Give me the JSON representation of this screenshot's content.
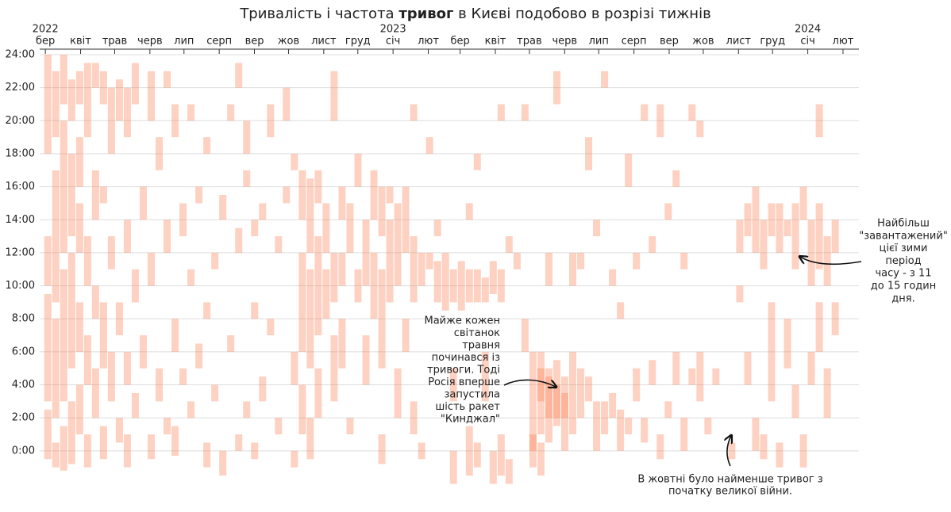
{
  "chart_data": {
    "type": "weekly-timeline",
    "title": [
      "Тривалість і частота ",
      "тривог",
      " в Києві подобово в розрізі тижнів"
    ],
    "color": "#fa7f4f",
    "grid": true,
    "xlim": [
      "2022-02-24",
      "2024-02-15"
    ],
    "xticks": [
      {
        "value": "2022-03-01",
        "label": "бер"
      },
      {
        "value": "2022-04-01",
        "label": "квіт"
      },
      {
        "value": "2022-05-01",
        "label": "трав"
      },
      {
        "value": "2022-06-01",
        "label": "черв"
      },
      {
        "value": "2022-07-01",
        "label": "лип"
      },
      {
        "value": "2022-08-01",
        "label": "серп"
      },
      {
        "value": "2022-09-01",
        "label": "вер"
      },
      {
        "value": "2022-10-01",
        "label": "жов"
      },
      {
        "value": "2022-11-01",
        "label": "лист"
      },
      {
        "value": "2022-12-01",
        "label": "груд"
      },
      {
        "value": "2023-01-01",
        "label": "січ"
      },
      {
        "value": "2023-02-01",
        "label": "лют"
      },
      {
        "value": "2023-03-01",
        "label": "бер"
      },
      {
        "value": "2023-04-01",
        "label": "квіт"
      },
      {
        "value": "2023-05-01",
        "label": "трав"
      },
      {
        "value": "2023-06-01",
        "label": "черв"
      },
      {
        "value": "2023-07-01",
        "label": "лип"
      },
      {
        "value": "2023-08-01",
        "label": "серп"
      },
      {
        "value": "2023-09-01",
        "label": "вер"
      },
      {
        "value": "2023-10-01",
        "label": "жов"
      },
      {
        "value": "2023-11-01",
        "label": "лист"
      },
      {
        "value": "2023-12-01",
        "label": "груд"
      },
      {
        "value": "2024-01-01",
        "label": "січ"
      },
      {
        "value": "2024-02-01",
        "label": "лют"
      }
    ],
    "year_labels": [
      {
        "value": "2022-03-01",
        "label": "2022"
      },
      {
        "value": "2023-01-01",
        "label": "2023"
      },
      {
        "value": "2024-01-01",
        "label": "2024"
      }
    ],
    "ylim": [
      -2.6,
      24
    ],
    "yticks": [
      {
        "value": 0,
        "label": "0:00"
      },
      {
        "value": 2,
        "label": "2:00"
      },
      {
        "value": 4,
        "label": "4:00"
      },
      {
        "value": 6,
        "label": "6:00"
      },
      {
        "value": 8,
        "label": "8:00"
      },
      {
        "value": 10,
        "label": "10:00"
      },
      {
        "value": 12,
        "label": "12:00"
      },
      {
        "value": 14,
        "label": "14:00"
      },
      {
        "value": 16,
        "label": "16:00"
      },
      {
        "value": 18,
        "label": "18:00"
      },
      {
        "value": 20,
        "label": "20:00"
      },
      {
        "value": 22,
        "label": "22:00"
      },
      {
        "value": 24,
        "label": "24:00"
      }
    ],
    "alerts": [
      [
        "2022-02-28",
        -0.5,
        2.5
      ],
      [
        "2022-02-28",
        3,
        9.5
      ],
      [
        "2022-02-28",
        10,
        13
      ],
      [
        "2022-02-28",
        18,
        24
      ],
      [
        "2022-03-07",
        -1,
        0.5
      ],
      [
        "2022-03-07",
        2,
        8
      ],
      [
        "2022-03-07",
        9,
        17
      ],
      [
        "2022-03-07",
        19,
        23
      ],
      [
        "2022-03-14",
        -1.2,
        1.5
      ],
      [
        "2022-03-14",
        3,
        11
      ],
      [
        "2022-03-14",
        12,
        20
      ],
      [
        "2022-03-14",
        21,
        24
      ],
      [
        "2022-03-21",
        -0.8,
        3
      ],
      [
        "2022-03-21",
        5,
        12
      ],
      [
        "2022-03-21",
        13,
        18
      ],
      [
        "2022-03-21",
        20,
        22.5
      ],
      [
        "2022-03-28",
        1,
        4
      ],
      [
        "2022-03-28",
        6,
        9
      ],
      [
        "2022-03-28",
        12,
        15
      ],
      [
        "2022-03-28",
        16,
        19
      ],
      [
        "2022-03-28",
        21,
        23
      ],
      [
        "2022-04-04",
        -1,
        1
      ],
      [
        "2022-04-04",
        4,
        7
      ],
      [
        "2022-04-04",
        10,
        13
      ],
      [
        "2022-04-04",
        19,
        23.5
      ],
      [
        "2022-04-11",
        2,
        5
      ],
      [
        "2022-04-11",
        8,
        10
      ],
      [
        "2022-04-11",
        14,
        17
      ],
      [
        "2022-04-11",
        22,
        23.5
      ],
      [
        "2022-04-18",
        -0.5,
        1.5
      ],
      [
        "2022-04-18",
        5,
        9
      ],
      [
        "2022-04-18",
        15,
        16
      ],
      [
        "2022-04-18",
        21,
        23
      ],
      [
        "2022-04-25",
        3,
        6
      ],
      [
        "2022-04-25",
        11,
        13
      ],
      [
        "2022-04-25",
        18,
        22
      ],
      [
        "2022-05-02",
        0.5,
        2
      ],
      [
        "2022-05-02",
        7,
        9
      ],
      [
        "2022-05-02",
        20,
        22.5
      ],
      [
        "2022-05-09",
        -1,
        1
      ],
      [
        "2022-05-09",
        4,
        6
      ],
      [
        "2022-05-09",
        12,
        14
      ],
      [
        "2022-05-09",
        19,
        22
      ],
      [
        "2022-05-16",
        2,
        3.5
      ],
      [
        "2022-05-16",
        9,
        11
      ],
      [
        "2022-05-16",
        21,
        23.5
      ],
      [
        "2022-05-23",
        5,
        7
      ],
      [
        "2022-05-23",
        14,
        16
      ],
      [
        "2022-05-30",
        -0.5,
        1
      ],
      [
        "2022-05-30",
        10,
        12
      ],
      [
        "2022-05-30",
        20,
        23
      ],
      [
        "2022-06-06",
        3,
        5
      ],
      [
        "2022-06-06",
        17,
        19
      ],
      [
        "2022-06-13",
        1,
        2
      ],
      [
        "2022-06-13",
        12,
        14
      ],
      [
        "2022-06-13",
        22,
        23
      ],
      [
        "2022-06-20",
        -0.3,
        1.5
      ],
      [
        "2022-06-20",
        6,
        8
      ],
      [
        "2022-06-20",
        19,
        21
      ],
      [
        "2022-06-27",
        4,
        5
      ],
      [
        "2022-06-27",
        13,
        15
      ],
      [
        "2022-07-04",
        2,
        3
      ],
      [
        "2022-07-04",
        10,
        11
      ],
      [
        "2022-07-04",
        20,
        21
      ],
      [
        "2022-07-11",
        5,
        6.5
      ],
      [
        "2022-07-11",
        15,
        16
      ],
      [
        "2022-07-18",
        -1,
        0.5
      ],
      [
        "2022-07-18",
        8,
        9
      ],
      [
        "2022-07-18",
        18,
        19
      ],
      [
        "2022-07-25",
        3,
        4
      ],
      [
        "2022-07-25",
        11,
        12
      ],
      [
        "2022-08-01",
        -1.5,
        0
      ],
      [
        "2022-08-01",
        14,
        15.5
      ],
      [
        "2022-08-08",
        6,
        7
      ],
      [
        "2022-08-08",
        20,
        21
      ],
      [
        "2022-08-15",
        0,
        1
      ],
      [
        "2022-08-15",
        12,
        13.5
      ],
      [
        "2022-08-15",
        22,
        23.5
      ],
      [
        "2022-08-22",
        2,
        3
      ],
      [
        "2022-08-22",
        16,
        17
      ],
      [
        "2022-08-22",
        18,
        20
      ],
      [
        "2022-08-29",
        -0.5,
        0.5
      ],
      [
        "2022-08-29",
        8,
        9
      ],
      [
        "2022-08-29",
        13,
        14
      ],
      [
        "2022-09-05",
        3,
        4.5
      ],
      [
        "2022-09-05",
        14,
        15
      ],
      [
        "2022-09-12",
        7,
        8
      ],
      [
        "2022-09-12",
        19,
        21
      ],
      [
        "2022-09-19",
        1,
        2
      ],
      [
        "2022-09-19",
        12,
        13
      ],
      [
        "2022-09-26",
        15,
        16
      ],
      [
        "2022-09-26",
        20,
        22
      ],
      [
        "2022-10-03",
        -1,
        0
      ],
      [
        "2022-10-03",
        4,
        6
      ],
      [
        "2022-10-03",
        17,
        18
      ],
      [
        "2022-10-10",
        1,
        4
      ],
      [
        "2022-10-10",
        6,
        12
      ],
      [
        "2022-10-10",
        14,
        17
      ],
      [
        "2022-10-17",
        -0.5,
        2
      ],
      [
        "2022-10-17",
        5,
        11
      ],
      [
        "2022-10-17",
        12,
        16.5
      ],
      [
        "2022-10-24",
        2,
        5
      ],
      [
        "2022-10-24",
        7,
        13
      ],
      [
        "2022-10-24",
        15,
        17
      ],
      [
        "2022-10-31",
        8,
        11
      ],
      [
        "2022-10-31",
        12,
        15
      ],
      [
        "2022-11-07",
        3,
        7
      ],
      [
        "2022-11-07",
        9,
        12
      ],
      [
        "2022-11-07",
        20,
        23
      ],
      [
        "2022-11-14",
        5,
        8
      ],
      [
        "2022-11-14",
        10,
        12
      ],
      [
        "2022-11-14",
        14,
        16
      ],
      [
        "2022-11-21",
        1,
        2
      ],
      [
        "2022-11-21",
        12,
        15
      ],
      [
        "2022-11-28",
        9,
        11
      ],
      [
        "2022-11-28",
        16,
        18
      ],
      [
        "2022-12-05",
        4,
        7
      ],
      [
        "2022-12-05",
        10,
        14
      ],
      [
        "2022-12-12",
        8,
        12
      ],
      [
        "2022-12-12",
        14,
        17
      ],
      [
        "2022-12-19",
        -0.8,
        1
      ],
      [
        "2022-12-19",
        5,
        11
      ],
      [
        "2022-12-19",
        13,
        16
      ],
      [
        "2022-12-26",
        9,
        14
      ],
      [
        "2022-12-26",
        15,
        16
      ],
      [
        "2023-01-02",
        2,
        5
      ],
      [
        "2023-01-02",
        10,
        15
      ],
      [
        "2023-01-09",
        6,
        8
      ],
      [
        "2023-01-09",
        12,
        16
      ],
      [
        "2023-01-16",
        1,
        3
      ],
      [
        "2023-01-16",
        9,
        13
      ],
      [
        "2023-01-16",
        20,
        21
      ],
      [
        "2023-01-23",
        -0.5,
        0.5
      ],
      [
        "2023-01-23",
        10,
        12
      ],
      [
        "2023-01-30",
        11,
        12
      ],
      [
        "2023-01-30",
        18,
        19
      ],
      [
        "2023-02-06",
        9,
        11.5
      ],
      [
        "2023-02-06",
        13,
        14
      ],
      [
        "2023-02-13",
        8.5,
        12
      ],
      [
        "2023-02-20",
        -2,
        0
      ],
      [
        "2023-02-20",
        9,
        11
      ],
      [
        "2023-02-20",
        3,
        5
      ],
      [
        "2023-02-27",
        8.5,
        11.5
      ],
      [
        "2023-03-06",
        -1.5,
        1.5
      ],
      [
        "2023-03-06",
        9,
        11
      ],
      [
        "2023-03-06",
        14,
        15
      ],
      [
        "2023-03-13",
        9,
        11
      ],
      [
        "2023-03-13",
        -1,
        0.5
      ],
      [
        "2023-03-13",
        17,
        18
      ],
      [
        "2023-03-20",
        9,
        10.5
      ],
      [
        "2023-03-20",
        3,
        6
      ],
      [
        "2023-03-27",
        9.5,
        11.5
      ],
      [
        "2023-03-27",
        -2,
        0
      ],
      [
        "2023-04-03",
        9,
        11
      ],
      [
        "2023-04-03",
        -1.5,
        1
      ],
      [
        "2023-04-03",
        20,
        21
      ],
      [
        "2023-04-10",
        -2,
        -0.5
      ],
      [
        "2023-04-10",
        12,
        13
      ],
      [
        "2023-04-17",
        11,
        12
      ],
      [
        "2023-04-24",
        6,
        8
      ],
      [
        "2023-04-24",
        20,
        21
      ],
      [
        "2023-05-01",
        0,
        6
      ],
      [
        "2023-05-01",
        -1,
        1
      ],
      [
        "2023-05-08",
        1,
        5
      ],
      [
        "2023-05-08",
        3,
        6
      ],
      [
        "2023-05-08",
        -1.5,
        0.5
      ],
      [
        "2023-05-15",
        0.5,
        5
      ],
      [
        "2023-05-15",
        2,
        4.5
      ],
      [
        "2023-05-15",
        10,
        12
      ],
      [
        "2023-05-22",
        1.5,
        5.5
      ],
      [
        "2023-05-22",
        2,
        4
      ],
      [
        "2023-05-22",
        21,
        23
      ],
      [
        "2023-05-29",
        0,
        4.5
      ],
      [
        "2023-05-29",
        2,
        3.5
      ],
      [
        "2023-06-05",
        1,
        6
      ],
      [
        "2023-06-05",
        10,
        12
      ],
      [
        "2023-06-12",
        2,
        5
      ],
      [
        "2023-06-12",
        11,
        12
      ],
      [
        "2023-06-19",
        3,
        4.5
      ],
      [
        "2023-06-19",
        17,
        19
      ],
      [
        "2023-06-26",
        0,
        3
      ],
      [
        "2023-06-26",
        13,
        14
      ],
      [
        "2023-07-03",
        1,
        3
      ],
      [
        "2023-07-03",
        22,
        23
      ],
      [
        "2023-07-10",
        2,
        3.5
      ],
      [
        "2023-07-10",
        10,
        11
      ],
      [
        "2023-07-17",
        0,
        2.5
      ],
      [
        "2023-07-17",
        8,
        9
      ],
      [
        "2023-07-24",
        1,
        2
      ],
      [
        "2023-07-24",
        16,
        18
      ],
      [
        "2023-07-31",
        3,
        5
      ],
      [
        "2023-07-31",
        11,
        12
      ],
      [
        "2023-08-07",
        0.5,
        2
      ],
      [
        "2023-08-07",
        20,
        21
      ],
      [
        "2023-08-14",
        4,
        5.5
      ],
      [
        "2023-08-14",
        12,
        13
      ],
      [
        "2023-08-21",
        -0.5,
        1
      ],
      [
        "2023-08-21",
        19,
        21
      ],
      [
        "2023-08-28",
        2,
        3
      ],
      [
        "2023-08-28",
        14,
        15
      ],
      [
        "2023-09-04",
        4,
        6
      ],
      [
        "2023-09-04",
        16,
        17
      ],
      [
        "2023-09-11",
        0,
        2
      ],
      [
        "2023-09-11",
        11,
        12
      ],
      [
        "2023-09-18",
        4,
        5
      ],
      [
        "2023-09-18",
        20,
        21
      ],
      [
        "2023-09-25",
        3,
        6
      ],
      [
        "2023-09-25",
        19,
        20
      ],
      [
        "2023-10-02",
        1,
        2
      ],
      [
        "2023-10-09",
        4,
        5
      ],
      [
        "2023-10-23",
        -0.5,
        0.5
      ],
      [
        "2023-10-30",
        12,
        14
      ],
      [
        "2023-10-30",
        9,
        10
      ],
      [
        "2023-11-06",
        13,
        15
      ],
      [
        "2023-11-06",
        4,
        6
      ],
      [
        "2023-11-13",
        12,
        16
      ],
      [
        "2023-11-13",
        0,
        2
      ],
      [
        "2023-11-20",
        11,
        14
      ],
      [
        "2023-11-20",
        -0.5,
        1
      ],
      [
        "2023-11-27",
        3,
        9
      ],
      [
        "2023-11-27",
        13,
        15
      ],
      [
        "2023-12-04",
        12,
        15
      ],
      [
        "2023-12-04",
        -1,
        0.5
      ],
      [
        "2023-12-11",
        13,
        14
      ],
      [
        "2023-12-11",
        5,
        8
      ],
      [
        "2023-12-18",
        11,
        15
      ],
      [
        "2023-12-18",
        2,
        4
      ],
      [
        "2023-12-25",
        14,
        16
      ],
      [
        "2023-12-25",
        -1,
        1
      ],
      [
        "2024-01-01",
        10,
        14
      ],
      [
        "2024-01-01",
        4,
        6
      ],
      [
        "2024-01-08",
        11,
        15
      ],
      [
        "2024-01-08",
        6,
        9
      ],
      [
        "2024-01-08",
        19,
        21
      ],
      [
        "2024-01-15",
        10,
        13
      ],
      [
        "2024-01-15",
        2,
        5
      ],
      [
        "2024-01-22",
        12,
        14
      ],
      [
        "2024-01-22",
        7,
        9
      ]
    ],
    "annotations": [
      [
        "Найбільш",
        "\"завантажений\"",
        "цієї зими",
        "період",
        "часу - з 11",
        "до 15 годин",
        "дня."
      ],
      [
        "Майже кожен",
        "світанок",
        "травня",
        "починався із",
        "тривоги. Тоді",
        "Росія вперше",
        "запустила",
        "шість ракет",
        "\"Кинджал\""
      ],
      [
        "В жовтні було найменше тривог з",
        "початку великої війни."
      ]
    ]
  }
}
